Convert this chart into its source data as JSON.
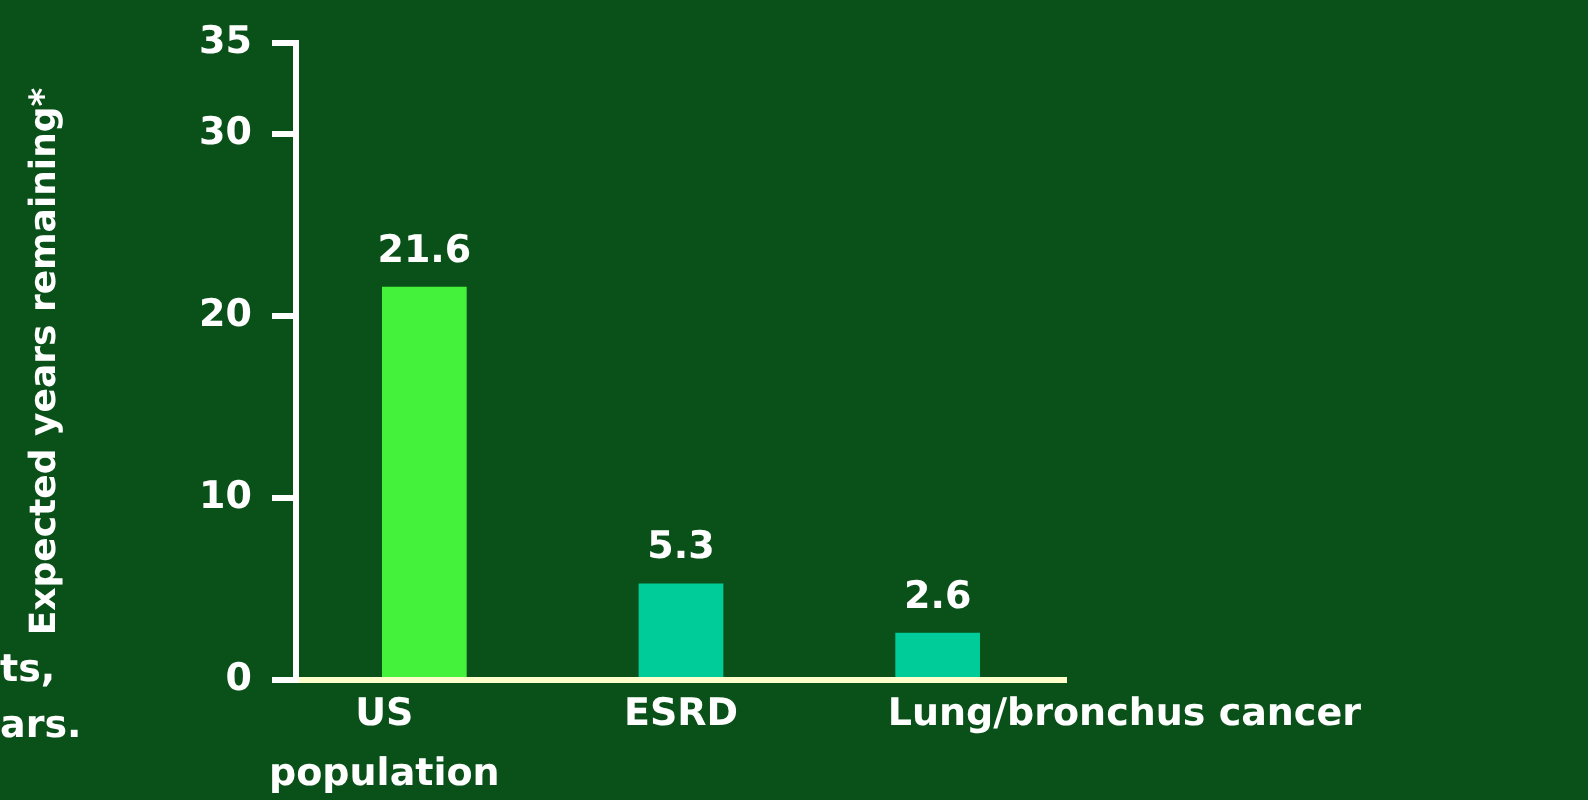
{
  "chart_data": {
    "type": "bar",
    "ylabel": "Expected years remaining*",
    "categories": [
      "US population",
      "ESRD",
      "Lung/bronchus cancer"
    ],
    "values": [
      21.6,
      5.3,
      2.6
    ],
    "colors": [
      "#44f23c",
      "#00cc99",
      "#00cc99"
    ],
    "ylim": [
      0,
      35
    ],
    "yticks": [
      0,
      10,
      20,
      30,
      35
    ],
    "grid": false,
    "legend": false,
    "data_labels": true,
    "annotations": [
      "ts,",
      "ars."
    ]
  }
}
